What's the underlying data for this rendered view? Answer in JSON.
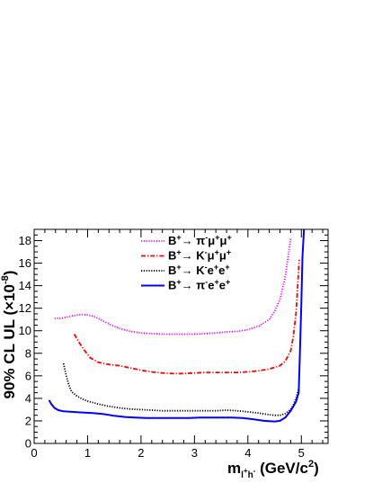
{
  "chart_data": {
    "type": "line",
    "xlabel": "m_{l⁺h⁻} (GeV/c²)",
    "xlabel_parts": {
      "main": "m",
      "sub": "l",
      "sub_sup1": "+",
      "sub2": "h",
      "sub_sup2": "-",
      "unit": " (GeV/c",
      "unit_sup": "2",
      "unit_close": ")"
    },
    "ylabel": "90% CL UL (×10⁻⁸)",
    "ylabel_parts": {
      "main": "90% CL UL (",
      "times": "×",
      "base": "10",
      "exp": "-8",
      "close": ")"
    },
    "xlim": [
      0,
      5.5
    ],
    "ylim": [
      0,
      19
    ],
    "x_ticks": [
      "0",
      "1",
      "2",
      "3",
      "4",
      "5"
    ],
    "y_ticks": [
      "0",
      "2",
      "4",
      "6",
      "8",
      "10",
      "12",
      "14",
      "16",
      "18"
    ],
    "grid": false,
    "legend_placement": "top-center",
    "series": [
      {
        "name": "B⁺→ π⁻μ⁺μ⁺",
        "label_parts": [
          "B",
          "+",
          "→ π",
          "-",
          "μ",
          "+",
          "μ",
          "+"
        ],
        "color": "#ff00ff",
        "style": "dotted",
        "x": [
          0.38,
          0.5,
          0.6,
          0.7,
          0.8,
          0.9,
          1.0,
          1.1,
          1.2,
          1.4,
          1.6,
          1.8,
          2.0,
          2.2,
          2.4,
          2.6,
          2.8,
          3.0,
          3.2,
          3.4,
          3.6,
          3.8,
          4.0,
          4.2,
          4.4,
          4.5,
          4.6,
          4.7,
          4.75,
          4.8
        ],
        "y": [
          11.1,
          11.1,
          11.2,
          11.3,
          11.4,
          11.45,
          11.4,
          11.3,
          11.1,
          10.6,
          10.2,
          9.95,
          9.8,
          9.75,
          9.7,
          9.7,
          9.7,
          9.7,
          9.75,
          9.8,
          9.9,
          9.95,
          10.1,
          10.4,
          11.0,
          11.7,
          12.8,
          14.8,
          16.5,
          18.2
        ]
      },
      {
        "name": "B⁺→ K⁻μ⁺μ⁺",
        "label_parts": [
          "B",
          "+",
          "→ K",
          "-",
          "μ",
          "+",
          "μ",
          "+"
        ],
        "color": "#ff0000",
        "style": "dash-dot",
        "x": [
          0.75,
          0.85,
          0.95,
          1.05,
          1.2,
          1.4,
          1.6,
          1.8,
          2.0,
          2.2,
          2.4,
          2.6,
          2.8,
          3.0,
          3.2,
          3.4,
          3.6,
          3.8,
          4.0,
          4.2,
          4.4,
          4.6,
          4.7,
          4.8,
          4.85,
          4.9,
          4.93,
          4.96
        ],
        "y": [
          9.7,
          8.9,
          8.2,
          7.6,
          7.2,
          7.0,
          6.9,
          6.7,
          6.5,
          6.35,
          6.25,
          6.2,
          6.2,
          6.25,
          6.3,
          6.3,
          6.3,
          6.3,
          6.35,
          6.45,
          6.6,
          6.9,
          7.3,
          8.2,
          9.5,
          11.5,
          13.8,
          16.3
        ]
      },
      {
        "name": "B⁺→ K⁻e⁺e⁺",
        "label_parts": [
          "B",
          "+",
          "→ K",
          "-",
          "e",
          "+",
          "e",
          "+"
        ],
        "color": "#000000",
        "style": "dotted",
        "x": [
          0.55,
          0.6,
          0.65,
          0.7,
          0.8,
          0.9,
          1.0,
          1.2,
          1.4,
          1.6,
          1.8,
          2.0,
          2.2,
          2.4,
          2.6,
          2.8,
          3.0,
          3.2,
          3.4,
          3.6,
          3.8,
          4.0,
          4.2,
          4.4,
          4.5,
          4.6,
          4.7,
          4.8,
          4.85,
          4.9,
          4.95
        ],
        "y": [
          7.1,
          6.0,
          5.2,
          4.6,
          4.2,
          3.95,
          3.75,
          3.5,
          3.3,
          3.15,
          3.05,
          3.0,
          2.95,
          2.9,
          2.9,
          2.9,
          2.9,
          2.9,
          2.9,
          2.95,
          2.9,
          2.8,
          2.7,
          2.55,
          2.5,
          2.5,
          2.65,
          3.0,
          3.4,
          4.0,
          4.8
        ]
      },
      {
        "name": "B⁺→ π⁻e⁺e⁺",
        "label_parts": [
          "B",
          "+",
          "→ π",
          "-",
          "e",
          "+",
          "e",
          "+"
        ],
        "color": "#0000ff",
        "style": "solid",
        "x": [
          0.28,
          0.32,
          0.38,
          0.45,
          0.55,
          0.7,
          0.9,
          1.1,
          1.3,
          1.5,
          1.7,
          1.9,
          2.1,
          2.3,
          2.5,
          2.7,
          2.9,
          3.1,
          3.3,
          3.5,
          3.7,
          3.9,
          4.1,
          4.3,
          4.5,
          4.6,
          4.7,
          4.8,
          4.85,
          4.9,
          4.95,
          4.97,
          5.0,
          5.02,
          5.05
        ],
        "y": [
          3.85,
          3.5,
          3.15,
          2.95,
          2.85,
          2.8,
          2.75,
          2.7,
          2.6,
          2.45,
          2.35,
          2.3,
          2.25,
          2.25,
          2.25,
          2.25,
          2.25,
          2.3,
          2.3,
          2.3,
          2.3,
          2.25,
          2.15,
          2.0,
          1.95,
          2.0,
          2.3,
          2.9,
          3.3,
          3.7,
          4.5,
          7.5,
          12.5,
          16.5,
          19.0
        ]
      }
    ]
  }
}
